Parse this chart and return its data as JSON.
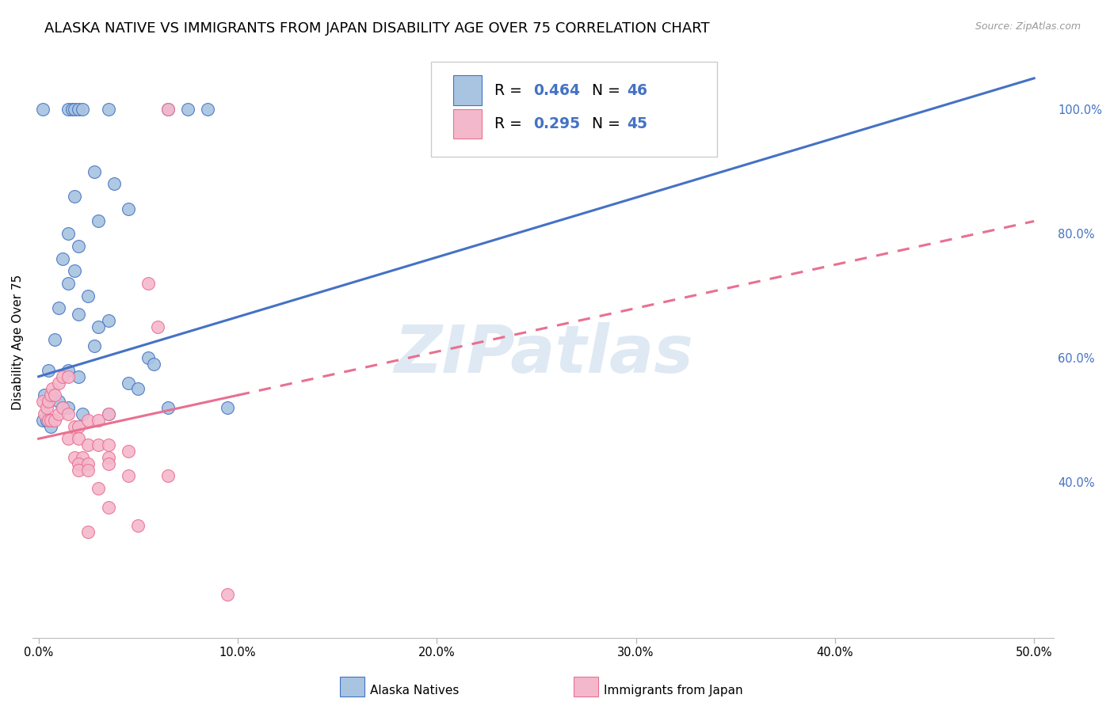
{
  "title": "ALASKA NATIVE VS IMMIGRANTS FROM JAPAN DISABILITY AGE OVER 75 CORRELATION CHART",
  "source": "Source: ZipAtlas.com",
  "ylabel": "Disability Age Over 75",
  "watermark": "ZIPatlas",
  "blue_color": "#a8c4e0",
  "pink_color": "#f4b8cc",
  "blue_line_color": "#4472c4",
  "pink_line_color": "#e87090",
  "blue_scatter": [
    [
      0.2,
      100.0
    ],
    [
      1.5,
      100.0
    ],
    [
      1.7,
      100.0
    ],
    [
      1.8,
      100.0
    ],
    [
      2.0,
      100.0
    ],
    [
      2.2,
      100.0
    ],
    [
      3.5,
      100.0
    ],
    [
      6.5,
      100.0
    ],
    [
      7.5,
      100.0
    ],
    [
      8.5,
      100.0
    ],
    [
      2.8,
      90.0
    ],
    [
      3.8,
      88.0
    ],
    [
      1.8,
      86.0
    ],
    [
      3.0,
      82.0
    ],
    [
      4.5,
      84.0
    ],
    [
      1.5,
      80.0
    ],
    [
      2.0,
      78.0
    ],
    [
      1.2,
      76.0
    ],
    [
      1.8,
      74.0
    ],
    [
      1.5,
      72.0
    ],
    [
      2.5,
      70.0
    ],
    [
      1.0,
      68.0
    ],
    [
      2.0,
      67.0
    ],
    [
      3.5,
      66.0
    ],
    [
      3.0,
      65.0
    ],
    [
      0.8,
      63.0
    ],
    [
      2.8,
      62.0
    ],
    [
      5.5,
      60.0
    ],
    [
      5.8,
      59.0
    ],
    [
      0.5,
      58.0
    ],
    [
      1.5,
      58.0
    ],
    [
      2.0,
      57.0
    ],
    [
      4.5,
      56.0
    ],
    [
      5.0,
      55.0
    ],
    [
      0.3,
      54.0
    ],
    [
      0.5,
      53.0
    ],
    [
      1.0,
      53.0
    ],
    [
      1.2,
      52.0
    ],
    [
      1.5,
      52.0
    ],
    [
      2.2,
      51.0
    ],
    [
      3.5,
      51.0
    ],
    [
      0.2,
      50.0
    ],
    [
      0.4,
      50.0
    ],
    [
      0.6,
      49.0
    ],
    [
      6.5,
      52.0
    ],
    [
      9.5,
      52.0
    ]
  ],
  "pink_scatter": [
    [
      6.5,
      100.0
    ],
    [
      0.2,
      53.0
    ],
    [
      0.3,
      51.0
    ],
    [
      0.4,
      52.0
    ],
    [
      0.5,
      53.0
    ],
    [
      0.6,
      54.0
    ],
    [
      0.7,
      55.0
    ],
    [
      0.8,
      54.0
    ],
    [
      1.0,
      56.0
    ],
    [
      1.2,
      57.0
    ],
    [
      1.5,
      57.0
    ],
    [
      0.5,
      50.0
    ],
    [
      0.6,
      50.0
    ],
    [
      0.8,
      50.0
    ],
    [
      1.0,
      51.0
    ],
    [
      1.2,
      52.0
    ],
    [
      1.5,
      51.0
    ],
    [
      1.8,
      49.0
    ],
    [
      2.0,
      49.0
    ],
    [
      2.5,
      50.0
    ],
    [
      3.0,
      50.0
    ],
    [
      3.5,
      51.0
    ],
    [
      1.5,
      47.0
    ],
    [
      2.0,
      47.0
    ],
    [
      2.5,
      46.0
    ],
    [
      3.0,
      46.0
    ],
    [
      3.5,
      46.0
    ],
    [
      1.8,
      44.0
    ],
    [
      2.2,
      44.0
    ],
    [
      3.5,
      44.0
    ],
    [
      2.0,
      43.0
    ],
    [
      2.5,
      43.0
    ],
    [
      2.0,
      42.0
    ],
    [
      2.5,
      42.0
    ],
    [
      3.5,
      43.0
    ],
    [
      5.5,
      72.0
    ],
    [
      6.0,
      65.0
    ],
    [
      4.5,
      45.0
    ],
    [
      3.0,
      39.0
    ],
    [
      4.5,
      41.0
    ],
    [
      6.5,
      41.0
    ],
    [
      3.5,
      36.0
    ],
    [
      5.0,
      33.0
    ],
    [
      2.5,
      32.0
    ],
    [
      9.5,
      22.0
    ]
  ],
  "xlim_min": -0.3,
  "xlim_max": 51.0,
  "ylim_min": 15.0,
  "ylim_max": 110.0,
  "blue_reg_x0": 0.0,
  "blue_reg_y0": 57.0,
  "blue_reg_x1": 50.0,
  "blue_reg_y1": 105.0,
  "pink_reg_x0": 0.0,
  "pink_reg_y0": 47.0,
  "pink_reg_x1": 50.0,
  "pink_reg_y1": 82.0,
  "pink_solid_end_x": 10.0,
  "grid_color": "#dddddd",
  "grid_style": "--",
  "background": "#ffffff",
  "title_fontsize": 13,
  "axis_label_fontsize": 11,
  "tick_fontsize": 10.5,
  "right_tick_color": "#4472c4",
  "legend_label_1": "Alaska Natives",
  "legend_label_2": "Immigrants from Japan",
  "legend_r1": "0.464",
  "legend_n1": "46",
  "legend_r2": "0.295",
  "legend_n2": "45",
  "xtick_vals": [
    0,
    10,
    20,
    30,
    40,
    50
  ],
  "xtick_labels": [
    "0.0%",
    "10.0%",
    "20.0%",
    "30.0%",
    "40.0%",
    "50.0%"
  ],
  "ytick_vals": [
    40,
    60,
    80,
    100
  ],
  "ytick_labels": [
    "40.0%",
    "60.0%",
    "80.0%",
    "100.0%"
  ]
}
